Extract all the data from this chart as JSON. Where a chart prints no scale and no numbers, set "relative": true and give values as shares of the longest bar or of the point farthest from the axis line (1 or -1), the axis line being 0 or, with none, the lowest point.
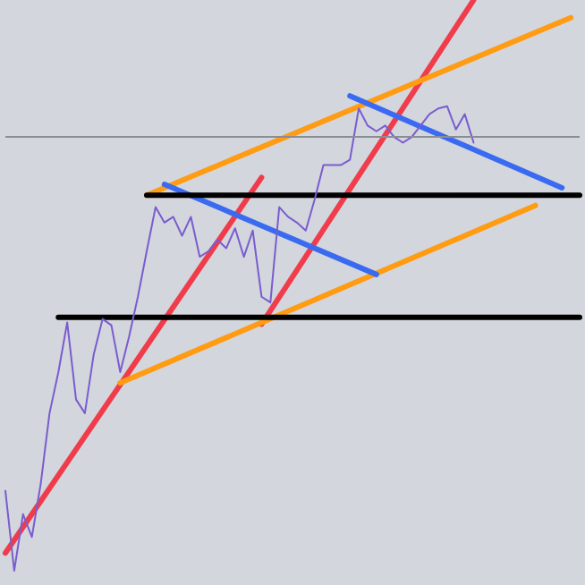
{
  "chart_data": {
    "type": "line",
    "relative": true,
    "marker": "none",
    "line_style": "solid",
    "categories": [
      null,
      null,
      null,
      null,
      null,
      null,
      null,
      null,
      null,
      null,
      null,
      null,
      null,
      null,
      null,
      null,
      null,
      null,
      null,
      null,
      null,
      null,
      null,
      null,
      null,
      null,
      null,
      null,
      null,
      null,
      null,
      null,
      null,
      null,
      null,
      null,
      null,
      null,
      null,
      null,
      null,
      null,
      null,
      null,
      null,
      null,
      null,
      null,
      null,
      null,
      null,
      null,
      null,
      null,
      null,
      null,
      null,
      null,
      null,
      null,
      null,
      null,
      null,
      null,
      null,
      null
    ],
    "series": [
      {
        "color": "#7a5ccf",
        "values": [
          0.14,
          0,
          0.099,
          0.059,
          0.152,
          0.276,
          0.348,
          0.435,
          0.3,
          0.276,
          0.379,
          0.441,
          0.43,
          0.348,
          0.41,
          0.48,
          0.56,
          0.637,
          0.61,
          0.62,
          0.587,
          0.62,
          0.55,
          0.56,
          0.58,
          0.565,
          0.6,
          0.55,
          0.596,
          0.48,
          0.47,
          0.637,
          0.62,
          0.61,
          0.596,
          0.65,
          0.711,
          0.711,
          0.711,
          0.72,
          0.81,
          0.78,
          0.77,
          0.78,
          0.76,
          0.75,
          0.76,
          0.78,
          0.8,
          0.81,
          0.814,
          0.773,
          0.8,
          0.75,
          null,
          null,
          null,
          null,
          null,
          null,
          null,
          null,
          null,
          null,
          null,
          null
        ]
      },
      {
        "color": "#f03c4a",
        "values": [
          0.031,
          null,
          null,
          null,
          null,
          null,
          null,
          null,
          null,
          null,
          null,
          null,
          null,
          null,
          null,
          null,
          null,
          null,
          null,
          null,
          null,
          null,
          null,
          null,
          null,
          null,
          null,
          null,
          null,
          0.689,
          null,
          null,
          null,
          null,
          null,
          null,
          null,
          null,
          null,
          null,
          null,
          null,
          null,
          null,
          null,
          null,
          null,
          null,
          null,
          null,
          null,
          null,
          null,
          null,
          null,
          null,
          null,
          null,
          null,
          null,
          null,
          null,
          null,
          null,
          null,
          null
        ]
      },
      {
        "color": "#f03c4b",
        "values": [
          null,
          null,
          null,
          null,
          null,
          null,
          null,
          null,
          null,
          null,
          null,
          null,
          null,
          null,
          null,
          null,
          null,
          null,
          null,
          null,
          null,
          null,
          null,
          null,
          null,
          null,
          null,
          null,
          null,
          0.432,
          null,
          null,
          null,
          null,
          null,
          null,
          null,
          null,
          null,
          null,
          null,
          null,
          null,
          null,
          null,
          null,
          null,
          null,
          null,
          null,
          null,
          null,
          null,
          1,
          null,
          null,
          null,
          null,
          null,
          null,
          null,
          null,
          null,
          null,
          null,
          null
        ]
      },
      {
        "color": "#ff9c12",
        "values": [
          null,
          null,
          null,
          null,
          null,
          null,
          null,
          null,
          null,
          null,
          null,
          null,
          null,
          0.329,
          null,
          null,
          null,
          null,
          null,
          null,
          null,
          null,
          null,
          null,
          null,
          null,
          null,
          null,
          null,
          null,
          null,
          null,
          null,
          null,
          null,
          null,
          null,
          null,
          null,
          null,
          null,
          null,
          null,
          null,
          null,
          null,
          null,
          null,
          null,
          null,
          null,
          null,
          null,
          null,
          null,
          null,
          null,
          null,
          null,
          null,
          0.64,
          null,
          null,
          null,
          null,
          null
        ]
      },
      {
        "color": "#ff9c13",
        "values": [
          null,
          null,
          null,
          null,
          null,
          null,
          null,
          null,
          null,
          null,
          null,
          null,
          null,
          null,
          null,
          null,
          0.658,
          null,
          null,
          null,
          null,
          null,
          null,
          null,
          null,
          null,
          null,
          null,
          null,
          null,
          null,
          null,
          null,
          null,
          null,
          null,
          null,
          null,
          null,
          null,
          null,
          null,
          null,
          null,
          null,
          null,
          null,
          null,
          null,
          null,
          null,
          null,
          null,
          null,
          null,
          null,
          null,
          null,
          null,
          null,
          null,
          null,
          null,
          null,
          0.969,
          null
        ]
      },
      {
        "color": "#3a6af0",
        "values": [
          null,
          null,
          null,
          null,
          null,
          null,
          null,
          null,
          null,
          null,
          null,
          null,
          null,
          null,
          null,
          null,
          null,
          null,
          0.677,
          null,
          null,
          null,
          null,
          null,
          null,
          null,
          null,
          null,
          null,
          null,
          null,
          null,
          null,
          null,
          null,
          null,
          null,
          null,
          null,
          null,
          null,
          null,
          0.519,
          null,
          null,
          null,
          null,
          null,
          null,
          null,
          null,
          null,
          null,
          null,
          null,
          null,
          null,
          null,
          null,
          null,
          null,
          null,
          null,
          null,
          null,
          null
        ]
      },
      {
        "color": "#3a6af1",
        "values": [
          null,
          null,
          null,
          null,
          null,
          null,
          null,
          null,
          null,
          null,
          null,
          null,
          null,
          null,
          null,
          null,
          null,
          null,
          null,
          null,
          null,
          null,
          null,
          null,
          null,
          null,
          null,
          null,
          null,
          null,
          null,
          null,
          null,
          null,
          null,
          null,
          null,
          null,
          null,
          0.832,
          null,
          null,
          null,
          null,
          null,
          null,
          null,
          null,
          null,
          null,
          null,
          null,
          null,
          null,
          null,
          null,
          null,
          null,
          null,
          null,
          null,
          null,
          null,
          0.671,
          null,
          null
        ]
      },
      {
        "color": "#000000",
        "values": [
          null,
          null,
          null,
          null,
          null,
          null,
          null,
          null,
          null,
          null,
          null,
          null,
          null,
          null,
          null,
          null,
          0.658,
          null,
          null,
          null,
          null,
          null,
          null,
          null,
          null,
          null,
          null,
          null,
          null,
          null,
          null,
          null,
          null,
          null,
          null,
          null,
          null,
          null,
          null,
          null,
          null,
          null,
          null,
          null,
          null,
          null,
          null,
          null,
          null,
          null,
          null,
          null,
          null,
          null,
          null,
          null,
          null,
          null,
          null,
          null,
          null,
          null,
          null,
          null,
          null,
          0.658
        ]
      },
      {
        "color": "#010101",
        "values": [
          null,
          null,
          null,
          null,
          null,
          null,
          0.444,
          null,
          null,
          null,
          null,
          null,
          null,
          null,
          null,
          null,
          null,
          null,
          null,
          null,
          null,
          null,
          null,
          null,
          null,
          null,
          null,
          null,
          null,
          null,
          null,
          null,
          null,
          null,
          null,
          null,
          null,
          null,
          null,
          null,
          null,
          null,
          null,
          null,
          null,
          null,
          null,
          null,
          null,
          null,
          null,
          null,
          null,
          null,
          null,
          null,
          null,
          null,
          null,
          null,
          null,
          null,
          null,
          null,
          null,
          0.444
        ]
      }
    ],
    "ref_lines": [
      {
        "axis": "y",
        "value": 0.76,
        "color": "#8a8d94"
      }
    ]
  }
}
